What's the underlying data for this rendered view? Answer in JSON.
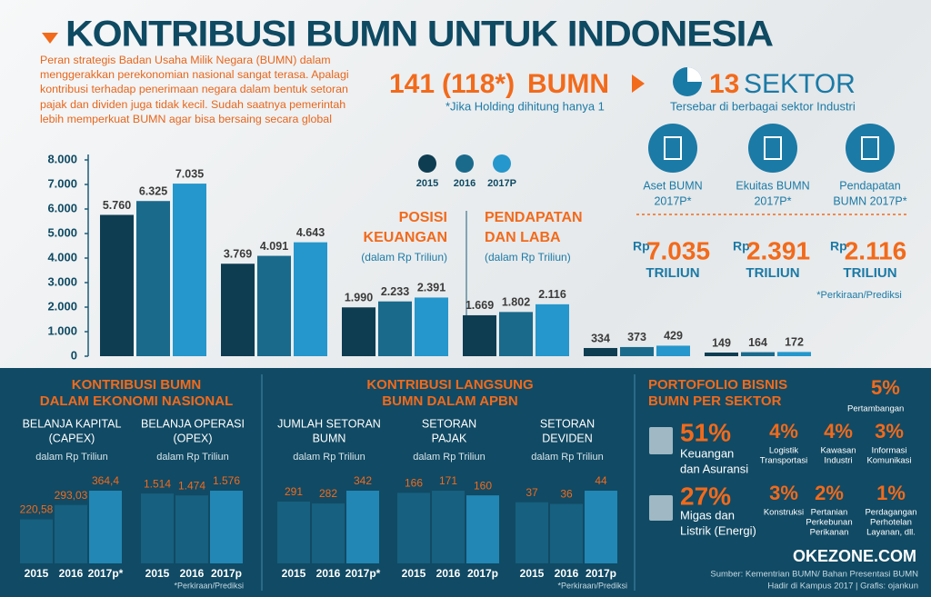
{
  "header": {
    "title": "KONTRIBUSI BUMN UNTUK INDONESIA",
    "intro": "Peran strategis Badan Usaha Milik Negara (BUMN) dalam menggerakkan perekonomian nasional sangat terasa. Apalagi kontribusi terhadap penerimaan negara dalam bentuk setoran pajak dan dividen juga tidak kecil. Sudah saatnya pemerintah lebih memperkuat BUMN agar bisa bersaing secara global"
  },
  "bumn_count": {
    "count": "141",
    "holding": "(118*)",
    "unit": "BUMN",
    "note": "*Jika Holding dihitung hanya 1"
  },
  "sectors": {
    "count": "13",
    "label": "SEKTOR",
    "note": "Tersebar di berbagai sektor Industri"
  },
  "highlights": {
    "items": [
      {
        "label": [
          "Aset BUMN",
          "2017P*"
        ],
        "currency": "Rp",
        "value": "7.035",
        "unit": "TRILIUN"
      },
      {
        "label": [
          "Ekuitas BUMN",
          "2017P*"
        ],
        "currency": "Rp",
        "value": "2.391",
        "unit": "TRILIUN"
      },
      {
        "label": [
          "Pendapatan",
          "BUMN 2017P*"
        ],
        "currency": "Rp",
        "value": "2.116",
        "unit": "TRILIUN"
      }
    ],
    "note": "*Perkiraan/Prediksi"
  },
  "chart_data": [
    {
      "type": "bar",
      "categories": [
        null,
        null,
        null,
        null,
        null,
        null
      ],
      "series": [
        {
          "name": "2015",
          "color": "#0e3d52",
          "values": [
            5760,
            3769,
            1990,
            1669,
            334,
            149
          ],
          "value_labels": [
            "5.760",
            "3.769",
            "1.990",
            "1.669",
            "334",
            "149"
          ]
        },
        {
          "name": "2016",
          "color": "#1a6a8c",
          "values": [
            6325,
            4091,
            2233,
            1802,
            373,
            164
          ],
          "value_labels": [
            "6.325",
            "4.091",
            "2.233",
            "1.802",
            "373",
            "164"
          ]
        },
        {
          "name": "2017P",
          "color": "#2597cc",
          "values": [
            7035,
            4643,
            2391,
            2116,
            429,
            172
          ],
          "value_labels": [
            "7.035",
            "4.643",
            "2.391",
            "2.116",
            "429",
            "172"
          ]
        }
      ],
      "ylim": [
        0,
        8000
      ],
      "yticks": [
        0,
        {
          "value": 1000,
          "label": "1.000"
        },
        {
          "value": 2000,
          "label": "2.000"
        },
        {
          "value": 3000,
          "label": "3.000"
        },
        {
          "value": 4000,
          "label": "4.000"
        },
        {
          "value": 5000,
          "label": "5.000"
        },
        {
          "value": 6000,
          "label": "6.000"
        },
        {
          "value": 7000,
          "label": "7.000"
        },
        {
          "value": 8000,
          "label": "8.000"
        }
      ],
      "grid": false,
      "annotations": [
        {
          "title": [
            "POSISI",
            "KEUANGAN"
          ],
          "subtitle": "(dalam Rp Triliun)"
        },
        {
          "title": [
            "PENDAPATAN",
            "DAN LABA"
          ],
          "subtitle": "(dalam Rp Triliun)"
        }
      ]
    },
    {
      "type": "bar",
      "title": [
        "BELANJA KAPITAL",
        "(CAPEX)"
      ],
      "subtitle": "dalam Rp Triliun",
      "categories": [
        "2015",
        "2016",
        "2017p*"
      ],
      "values": [
        220.58,
        293.03,
        364.4
      ],
      "value_labels": [
        "220,58",
        "293,03",
        "364,4"
      ],
      "colors": [
        "#17607f",
        "#17607f",
        "#2287b4"
      ]
    },
    {
      "type": "bar",
      "title": [
        "BELANJA OPERASI",
        "(OPEX)"
      ],
      "subtitle": "dalam Rp Triliun",
      "categories": [
        "2015",
        "2016",
        "2017p"
      ],
      "values": [
        1514,
        1474,
        1576
      ],
      "value_labels": [
        "1.514",
        "1.474",
        "1.576"
      ],
      "colors": [
        "#17607f",
        "#17607f",
        "#2287b4"
      ]
    },
    {
      "type": "bar",
      "title": [
        "JUMLAH SETORAN",
        "BUMN"
      ],
      "subtitle": "dalam Rp Triliun",
      "categories": [
        "2015",
        "2016",
        "2017p*"
      ],
      "values": [
        291,
        282,
        342
      ],
      "colors": [
        "#17607f",
        "#17607f",
        "#2287b4"
      ]
    },
    {
      "type": "bar",
      "title": [
        "SETORAN",
        "PAJAK"
      ],
      "subtitle": "dalam Rp Triliun",
      "categories": [
        "2015",
        "2016",
        "2017p"
      ],
      "values": [
        166,
        171,
        160
      ],
      "colors": [
        "#17607f",
        "#17607f",
        "#2287b4"
      ]
    },
    {
      "type": "bar",
      "title": [
        "SETORAN",
        "DEVIDEN"
      ],
      "subtitle": "dalam Rp Triliun",
      "categories": [
        "2015",
        "2016",
        "2017p"
      ],
      "values": [
        37,
        36,
        44
      ],
      "colors": [
        "#17607f",
        "#17607f",
        "#2287b4"
      ]
    }
  ],
  "sections": [
    {
      "title": [
        "KONTRIBUSI BUMN",
        "DALAM EKONOMI NASIONAL"
      ],
      "note": "*Perkiraan/Prediksi"
    },
    {
      "title": [
        "KONTRIBUSI LANGSUNG",
        "BUMN DALAM APBN"
      ],
      "note": "*Perkiraan/Prediksi"
    },
    {
      "title": [
        "PORTOFOLIO BISNIS",
        "BUMN PER SEKTOR"
      ]
    }
  ],
  "portfolio": [
    {
      "percent": "5%",
      "label": [
        "Pertambangan"
      ]
    },
    {
      "percent": "51%",
      "label": [
        "Keuangan",
        "dan Asuransi"
      ]
    },
    {
      "percent": "4%",
      "label": [
        "Logistik",
        "Transportasi"
      ]
    },
    {
      "percent": "4%",
      "label": [
        "Kawasan",
        "Industri"
      ]
    },
    {
      "percent": "3%",
      "label": [
        "Informasi",
        "Komunikasi"
      ]
    },
    {
      "percent": "27%",
      "label": [
        "Migas dan",
        "Listrik (Energi)"
      ]
    },
    {
      "percent": "3%",
      "label": [
        "Konstruksi"
      ]
    },
    {
      "percent": "2%",
      "label": [
        "Pertanian",
        "Perkebunan",
        "Perikanan"
      ]
    },
    {
      "percent": "1%",
      "label": [
        "Perdagangan",
        "Perhotelan",
        "Layanan, dll."
      ]
    }
  ],
  "footer": {
    "brand": "OKEZONE.COM",
    "source": [
      "Sumber: Kementrian BUMN/ Bahan Presentasi BUMN",
      "Hadir di Kampus 2017 | Grafis: ojankun"
    ]
  }
}
